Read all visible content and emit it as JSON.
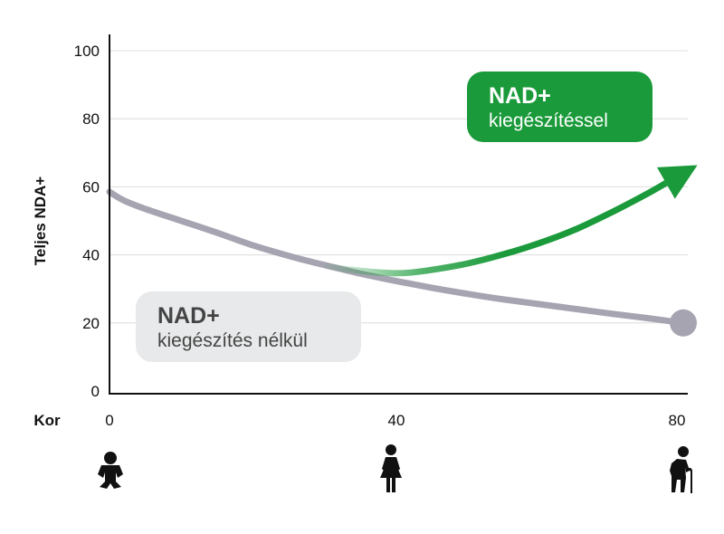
{
  "chart_data": {
    "type": "line",
    "ylabel": "Teljes NDA+",
    "xlabel": "Kor",
    "xlim": [
      0,
      80
    ],
    "ylim": [
      0,
      100
    ],
    "x_ticks": [
      0,
      40,
      80
    ],
    "y_ticks": [
      0,
      20,
      40,
      60,
      80,
      100
    ],
    "grid": true,
    "series": [
      {
        "color": "#a7a4b2",
        "x": [
          0,
          2,
          5,
          10,
          15,
          20,
          25,
          30,
          35,
          40,
          45,
          50,
          55,
          60,
          65,
          70,
          75,
          80
        ],
        "y": [
          58.5,
          56,
          53.5,
          50,
          46.5,
          42.8,
          39.7,
          37,
          34.5,
          32.3,
          30.3,
          28.5,
          26.9,
          25.5,
          24.1,
          22.7,
          21.4,
          20
        ]
      },
      {
        "color": "#1a9a3a",
        "x": [
          30,
          33,
          36,
          38,
          40,
          42,
          45,
          50,
          55,
          60,
          65,
          70,
          75,
          80
        ],
        "y": [
          36.8,
          35.8,
          35.1,
          34.8,
          34.6,
          34.8,
          35.6,
          37.5,
          40.2,
          43.5,
          47.5,
          52.5,
          58,
          64
        ],
        "arrow": true
      }
    ],
    "callouts": [
      {
        "title": "NAD+",
        "subtitle": "kiegészítéssel",
        "bg": "#1a9a3a",
        "fg": "#ffffff"
      },
      {
        "title": "NAD+",
        "subtitle": "kiegészítés nélkül",
        "bg": "#e8e9ea",
        "fg": "#444444"
      }
    ],
    "icons": [
      {
        "x": 0,
        "name": "baby-icon"
      },
      {
        "x": 40,
        "name": "woman-icon"
      },
      {
        "x": 80,
        "name": "elderly-person-icon"
      }
    ]
  }
}
